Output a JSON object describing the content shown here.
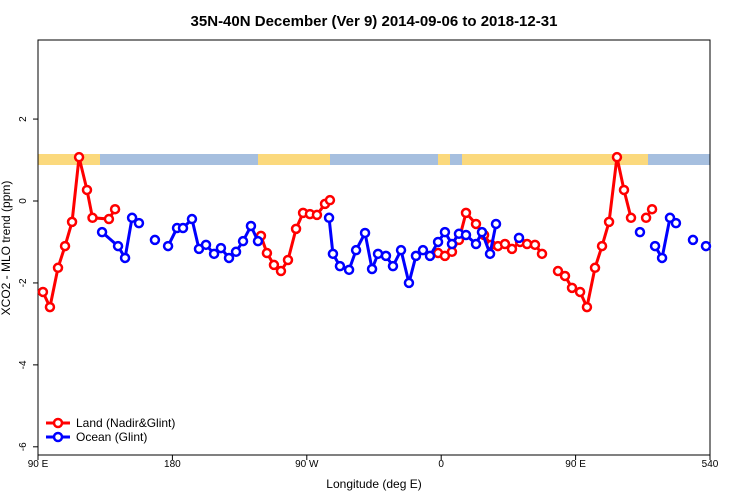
{
  "chart_data": {
    "type": "line",
    "title": "35N-40N December (Ver 9)   2014-09-06 to 2018-12-31",
    "x_label": "Longitude (deg E)",
    "y_label": "XCO2 - MLO trend (ppm)",
    "xlim": [
      90,
      540
    ],
    "ylim": [
      -6.2,
      3.93
    ],
    "xticks": [
      {
        "value": 90,
        "label": "90 E"
      },
      180,
      {
        "value": 270,
        "label": "90 W"
      },
      {
        "value": 360,
        "label": "0"
      },
      {
        "value": 450,
        "label": "90 E"
      },
      540
    ],
    "yticks": [
      -6,
      -4,
      -2,
      0,
      2
    ],
    "legend": "bottom-left",
    "series": [
      {
        "name": "Land (Nadir&Glint)",
        "color": "#ff0000",
        "x": [
          93.3,
          98,
          103.4,
          108.1,
          112.8,
          117.5,
          122.8,
          126.5,
          137.5,
          141.6,
          null,
          239.3,
          243.3,
          248,
          252.7,
          257.4,
          262.8,
          267.5,
          272.1,
          276.8,
          282.2,
          285.5,
          null,
          357.9,
          362.5,
          367.2,
          371.9,
          376.6,
          383.3,
          388.7,
          393.4,
          398,
          402.7,
          407.4,
          412.8,
          417.5,
          422.8,
          427.5,
          null,
          438.2,
          442.9,
          447.6,
          453,
          457.6,
          463,
          467.7,
          472.4,
          477.7,
          482.4,
          487.1,
          null,
          497.2,
          501.2
        ],
        "values": [
          -2.22,
          -2.59,
          -1.63,
          -1.1,
          -0.51,
          1.07,
          0.27,
          -0.41,
          -0.44,
          -0.2,
          null,
          -0.85,
          -1.27,
          -1.56,
          -1.71,
          -1.44,
          -0.68,
          -0.29,
          -0.32,
          -0.34,
          -0.07,
          0.02,
          null,
          -1.27,
          -1.34,
          -1.24,
          -0.95,
          -0.29,
          -0.56,
          -0.83,
          -1.07,
          -1.1,
          -1.05,
          -1.17,
          -1.0,
          -1.05,
          -1.07,
          -1.29,
          null,
          -1.71,
          -1.83,
          -2.12,
          -2.22,
          -2.59,
          -1.63,
          -1.1,
          -0.51,
          1.07,
          0.27,
          -0.41,
          null,
          -0.41,
          -0.2
        ]
      },
      {
        "name": "Ocean (Glint)",
        "color": "#0000ff",
        "x": [
          132.9,
          143.6,
          148.3,
          153,
          157.6,
          null,
          168.3,
          null,
          177.1,
          183.1,
          187.1,
          193.1,
          197.8,
          202.5,
          207.9,
          212.5,
          217.9,
          222.6,
          227.3,
          232.6,
          237.3,
          null,
          284.9,
          287.5,
          292.2,
          298.3,
          303,
          309,
          313.7,
          317.7,
          323,
          327.7,
          333.1,
          338.4,
          343.1,
          347.8,
          352.5,
          357.9,
          362.5,
          367.2,
          371.9,
          376.6,
          383.3,
          387.3,
          392.7,
          396.7,
          null,
          412.1,
          null,
          493.1,
          null,
          503.2,
          507.9,
          513.2,
          517.2,
          null,
          528.6,
          null,
          537.3
        ],
        "values": [
          -0.76,
          -1.1,
          -1.39,
          -0.41,
          -0.54,
          null,
          -0.95,
          null,
          -1.1,
          -0.66,
          -0.66,
          -0.44,
          -1.17,
          -1.07,
          -1.29,
          -1.15,
          -1.39,
          -1.24,
          -0.98,
          -0.61,
          -0.98,
          null,
          -0.41,
          -1.29,
          -1.59,
          -1.68,
          -1.2,
          -0.78,
          -1.66,
          -1.29,
          -1.34,
          -1.59,
          -1.2,
          -2.0,
          -1.34,
          -1.2,
          -1.34,
          -1.0,
          -0.76,
          -1.05,
          -0.8,
          -0.83,
          -1.05,
          -0.76,
          -1.29,
          -0.56,
          null,
          -0.9,
          null,
          -0.76,
          null,
          -1.1,
          -1.39,
          -0.41,
          -0.54,
          null,
          -0.95,
          null,
          -1.1
        ]
      }
    ]
  }
}
